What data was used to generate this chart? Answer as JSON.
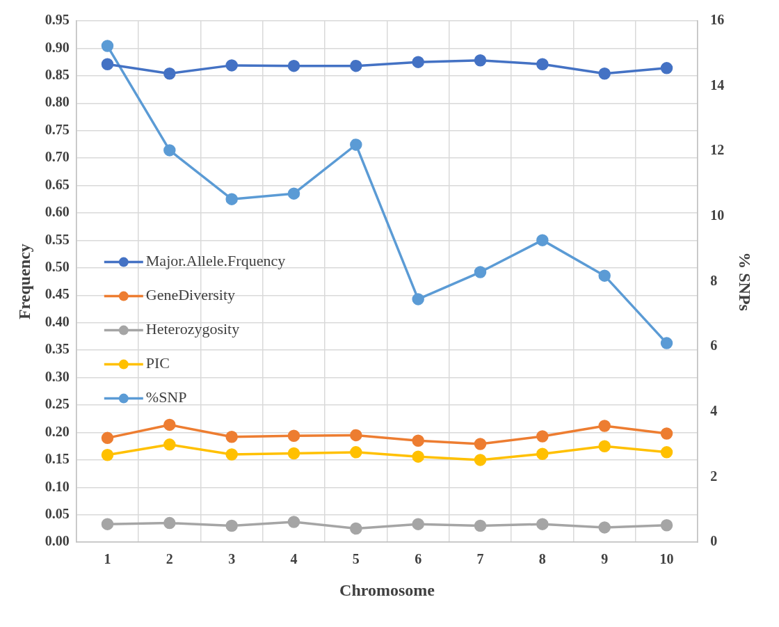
{
  "chart_data": {
    "type": "line",
    "xlabel": "Chromosome",
    "ylabel": "Frequency",
    "y2label": "% SNPs",
    "categories": [
      "1",
      "2",
      "3",
      "4",
      "5",
      "6",
      "7",
      "8",
      "9",
      "10"
    ],
    "series": [
      {
        "name": "Major.Allele.Frquency",
        "color": "#4472c4",
        "values": [
          0.871,
          0.854,
          0.869,
          0.868,
          0.868,
          0.875,
          0.878,
          0.871,
          0.854,
          0.864
        ]
      },
      {
        "name": "GeneDiversity",
        "color": "#ed7d31",
        "values": [
          0.19,
          0.214,
          0.192,
          0.194,
          0.195,
          0.185,
          0.179,
          0.193,
          0.212,
          0.198
        ]
      },
      {
        "name": "Heterozygosity",
        "color": "#a5a5a5",
        "values": [
          0.033,
          0.035,
          0.03,
          0.037,
          0.025,
          0.033,
          0.03,
          0.033,
          0.027,
          0.031
        ]
      },
      {
        "name": "PIC",
        "color": "#ffc000",
        "values": [
          0.159,
          0.178,
          0.16,
          0.162,
          0.164,
          0.156,
          0.15,
          0.161,
          0.175,
          0.164
        ]
      },
      {
        "name": "%SNP",
        "color": "#5b9bd5",
        "axis": "y2",
        "values": [
          15.23,
          12.03,
          10.53,
          10.7,
          12.2,
          7.46,
          8.29,
          9.27,
          8.18,
          6.11
        ]
      }
    ],
    "ylim": [
      0,
      0.95
    ],
    "yticks": [
      {
        "value": 0,
        "label": "0.00"
      },
      {
        "value": 0.05,
        "label": "0.05"
      },
      {
        "value": 0.1,
        "label": "0.10"
      },
      {
        "value": 0.15,
        "label": "0.15"
      },
      {
        "value": 0.2,
        "label": "0.20"
      },
      {
        "value": 0.25,
        "label": "0.25"
      },
      {
        "value": 0.3,
        "label": "0.30"
      },
      {
        "value": 0.35,
        "label": "0.35"
      },
      {
        "value": 0.4,
        "label": "0.40"
      },
      {
        "value": 0.45,
        "label": "0.45"
      },
      {
        "value": 0.5,
        "label": "0.50"
      },
      {
        "value": 0.55,
        "label": "0.55"
      },
      {
        "value": 0.6,
        "label": "0.60"
      },
      {
        "value": 0.65,
        "label": "0.65"
      },
      {
        "value": 0.7,
        "label": "0.70"
      },
      {
        "value": 0.75,
        "label": "0.75"
      },
      {
        "value": 0.8,
        "label": "0.80"
      },
      {
        "value": 0.85,
        "label": "0.85"
      },
      {
        "value": 0.9,
        "label": "0.90"
      },
      {
        "value": 0.95,
        "label": "0.95"
      }
    ],
    "y2lim": [
      0,
      16
    ],
    "y2ticks": [
      0,
      2,
      4,
      6,
      8,
      10,
      12,
      14,
      16
    ],
    "grid": true,
    "legend": "left",
    "marker": "circle",
    "line_style": "solid"
  }
}
